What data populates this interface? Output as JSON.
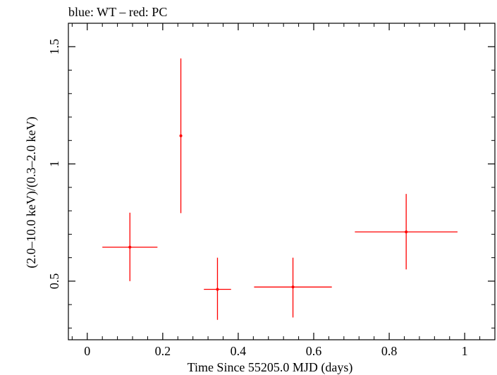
{
  "chart_data": {
    "type": "scatter",
    "title": "blue: WT – red: PC",
    "xlabel": "Time Since 55205.0 MJD (days)",
    "ylabel": "(2.0–10.0 keV)/(0.3–2.0 keV)",
    "xlim": [
      -0.05,
      1.08
    ],
    "ylim": [
      0.25,
      1.6
    ],
    "xticks": [
      0,
      0.2,
      0.4,
      0.6,
      0.8,
      1
    ],
    "xtick_labels": [
      "0",
      "0.2",
      "0.4",
      "0.6",
      "0.8",
      "1"
    ],
    "yticks": [
      0.5,
      1,
      1.5
    ],
    "ytick_labels": [
      "0.5",
      "1",
      "1.5"
    ],
    "grid": false,
    "series": [
      {
        "name": "PC",
        "color": "#ff0000",
        "points": [
          {
            "x": 0.113,
            "xerr": 0.073,
            "y": 0.645,
            "ylo": 0.5,
            "yhi": 0.792
          },
          {
            "x": 0.248,
            "xerr": 0.0,
            "y": 1.12,
            "ylo": 0.79,
            "yhi": 1.45
          },
          {
            "x": 0.345,
            "xerr": 0.036,
            "y": 0.465,
            "ylo": 0.335,
            "yhi": 0.6
          },
          {
            "x": 0.545,
            "xerr": 0.103,
            "y": 0.475,
            "ylo": 0.345,
            "yhi": 0.6
          },
          {
            "x": 0.845,
            "xerr": 0.136,
            "y": 0.71,
            "ylo": 0.55,
            "yhi": 0.872
          }
        ]
      }
    ]
  }
}
